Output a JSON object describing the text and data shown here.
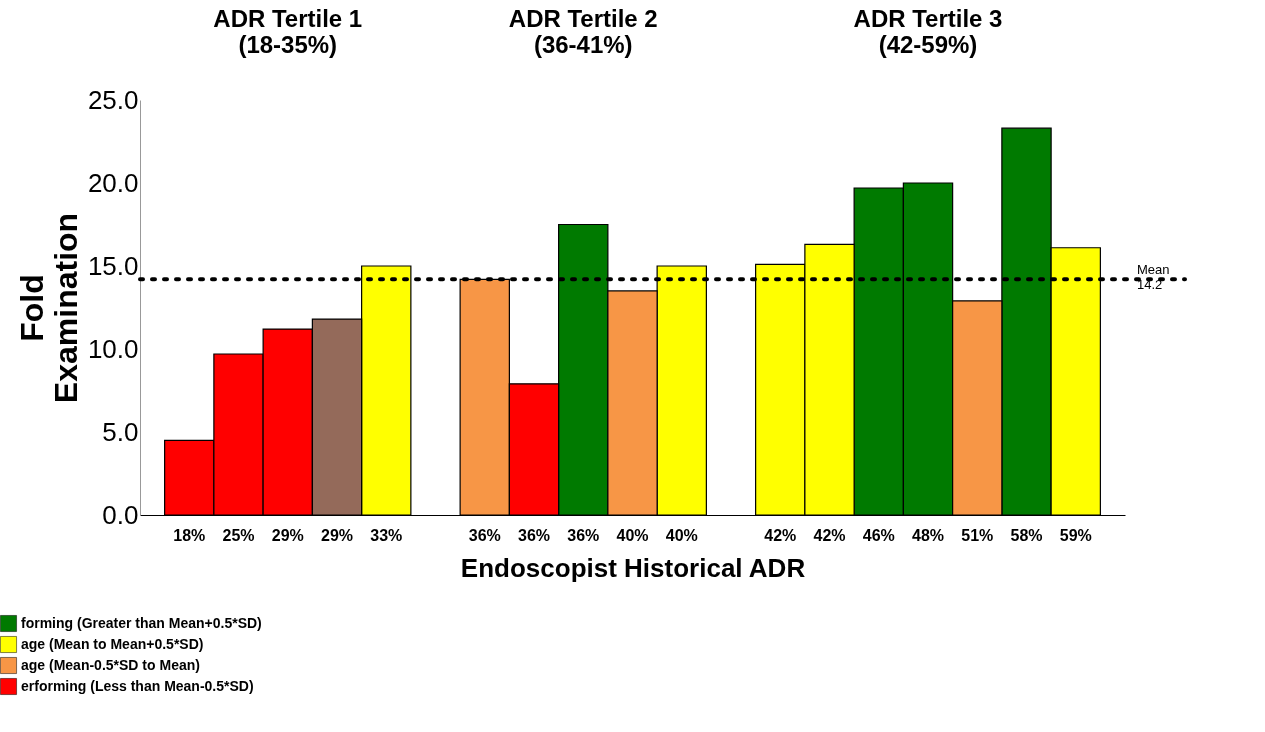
{
  "chart_data": {
    "type": "bar",
    "xlabel": "Endoscopist Historical ADR",
    "ylabel": "Fold\nExamination",
    "categories": [
      "18%",
      "25%",
      "29%",
      "29%",
      "33%",
      null,
      "36%",
      "36%",
      "36%",
      "40%",
      "40%",
      null,
      "42%",
      "42%",
      "46%",
      "48%",
      "51%",
      "58%",
      "59%"
    ],
    "series": [
      {
        "name": "forming (Greater than Mean+0.5*SD)",
        "color": "#007a00",
        "values": [
          null,
          null,
          null,
          null,
          null,
          null,
          null,
          null,
          17.5,
          null,
          null,
          null,
          null,
          null,
          19.7,
          20.0,
          null,
          23.3,
          null
        ]
      },
      {
        "name": "age (Mean to Mean+0.5*SD)",
        "color": "#ffff00",
        "values": [
          null,
          null,
          null,
          null,
          15.0,
          null,
          null,
          null,
          null,
          null,
          15.0,
          null,
          15.1,
          16.3,
          null,
          null,
          null,
          null,
          16.1
        ]
      },
      {
        "name": "age (Mean-0.5*SD to Mean)",
        "color": "#f79646",
        "values": [
          null,
          null,
          null,
          null,
          null,
          null,
          14.2,
          null,
          null,
          13.5,
          null,
          null,
          null,
          null,
          null,
          null,
          12.9,
          null,
          null
        ]
      },
      {
        "name": "erforming (Less than Mean-0.5*SD)",
        "color": "#ff0000",
        "values": [
          4.5,
          9.7,
          11.2,
          null,
          null,
          null,
          null,
          7.9,
          null,
          null,
          null,
          null,
          null,
          null,
          null,
          null,
          null,
          null,
          null
        ]
      },
      {
        "color": "#946a5a",
        "values": [
          null,
          null,
          null,
          11.8,
          null,
          null,
          null,
          null,
          null,
          null,
          null,
          null,
          null,
          null,
          null,
          null,
          null,
          null,
          null
        ]
      }
    ],
    "ylim": [
      0,
      25
    ],
    "yticks": [
      {
        "value": 0,
        "label": "0.0"
      },
      {
        "value": 5,
        "label": "5.0"
      },
      {
        "value": 10,
        "label": "10.0"
      },
      {
        "value": 15,
        "label": "15.0"
      },
      {
        "value": 20,
        "label": "20.0"
      },
      {
        "value": 25,
        "label": "25.0"
      }
    ],
    "ref_lines": [
      {
        "axis": "y",
        "value": 14.2,
        "label": "Mean\n14.2",
        "color": "#000000",
        "line_style": "dotted"
      }
    ],
    "annotations": [
      "ADR Tertile 1\n(18-35%)",
      "ADR Tertile 2\n(36-41%)",
      "ADR Tertile 3\n(42-59%)"
    ],
    "legend": "bottom left"
  }
}
